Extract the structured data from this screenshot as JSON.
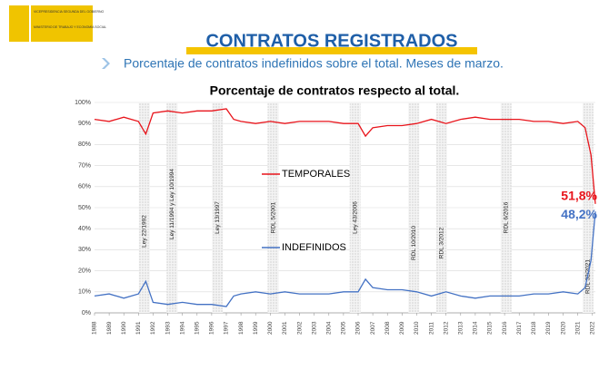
{
  "header": {
    "ministry": [
      "VICEPRESIDENCIA SEGUNDA DEL GOBIERNO",
      "MINISTERIO DE TRABAJO Y ECONOMÍA SOCIAL"
    ],
    "title": "CONTRATOS REGISTRADOS",
    "subtitle": "Porcentaje de contratos indefinidos sobre el total. Meses de marzo."
  },
  "chart_data": {
    "type": "line",
    "title": "Porcentaje de contratos respecto al total.",
    "x": [
      1988,
      1989,
      1990,
      1991,
      1991.5,
      1992,
      1993,
      1994,
      1995,
      1996,
      1997,
      1997.5,
      1998,
      1999,
      2000,
      2001,
      2002,
      2003,
      2004,
      2005,
      2006,
      2006.5,
      2007,
      2008,
      2009,
      2010,
      2011,
      2012,
      2013,
      2014,
      2015,
      2016,
      2017,
      2018,
      2019,
      2020,
      2021,
      2021.5,
      2021.9,
      2022.2
    ],
    "series": [
      {
        "name": "TEMPORALES",
        "color": "#e8141b",
        "values": [
          92,
          91,
          93,
          91,
          85,
          95,
          96,
          95,
          96,
          96,
          97,
          92,
          91,
          90,
          91,
          90,
          91,
          91,
          91,
          90,
          90,
          84,
          88,
          89,
          89,
          90,
          92,
          90,
          92,
          93,
          92,
          92,
          92,
          91,
          91,
          90,
          91,
          88,
          75,
          51.8
        ],
        "value_labels": [
          null,
          null,
          null,
          null,
          null,
          null,
          null,
          null,
          null,
          null,
          null,
          null,
          null,
          null,
          null,
          null,
          null,
          null,
          null,
          null,
          null,
          null,
          null,
          null,
          null,
          null,
          null,
          null,
          null,
          null,
          null,
          null,
          null,
          null,
          null,
          null,
          null,
          null,
          null,
          "51,8%"
        ]
      },
      {
        "name": "INDEFINIDOS",
        "color": "#4472c4",
        "values": [
          8,
          9,
          7,
          9,
          15,
          5,
          4,
          5,
          4,
          4,
          3,
          8,
          9,
          10,
          9,
          10,
          9,
          9,
          9,
          10,
          10,
          16,
          12,
          11,
          11,
          10,
          8,
          10,
          8,
          7,
          8,
          8,
          8,
          9,
          9,
          10,
          9,
          12,
          25,
          48.2
        ],
        "value_labels": [
          null,
          null,
          null,
          null,
          null,
          null,
          null,
          null,
          null,
          null,
          null,
          null,
          null,
          null,
          null,
          null,
          null,
          null,
          null,
          null,
          null,
          null,
          null,
          null,
          null,
          null,
          null,
          null,
          null,
          null,
          null,
          null,
          null,
          null,
          null,
          null,
          null,
          null,
          null,
          "48,2%"
        ]
      }
    ],
    "xlim": [
      1988,
      2022.2
    ],
    "xticks": [
      1988,
      1989,
      1990,
      1991,
      1992,
      1993,
      1994,
      1995,
      1996,
      1997,
      1998,
      1999,
      2000,
      2001,
      2002,
      2003,
      2004,
      2005,
      2006,
      2007,
      2008,
      2009,
      2010,
      2011,
      2012,
      2013,
      2014,
      2015,
      2016,
      2017,
      2018,
      2019,
      2020,
      2021,
      2022
    ],
    "ylim": [
      0,
      100
    ],
    "yticks": [
      {
        "value": 0,
        "label": "0%"
      },
      {
        "value": 10,
        "label": "10%"
      },
      {
        "value": 20,
        "label": "20%"
      },
      {
        "value": 30,
        "label": "30%"
      },
      {
        "value": 40,
        "label": "40%"
      },
      {
        "value": 50,
        "label": "50%"
      },
      {
        "value": 60,
        "label": "60%"
      },
      {
        "value": 70,
        "label": "70%"
      },
      {
        "value": 80,
        "label": "80%"
      },
      {
        "value": 90,
        "label": "90%"
      },
      {
        "value": 100,
        "label": "100%"
      }
    ],
    "grid": true,
    "annotations": [
      {
        "text": "Ley 22/1992",
        "x": 1991.4
      },
      {
        "text": "Ley 11/1994 y Ley 10/1994",
        "x": 1993.3
      },
      {
        "text": "Ley 13/1997",
        "x": 1996.4
      },
      {
        "text": "RDL 5/2001",
        "x": 2000.2
      },
      {
        "text": "Ley 43/2006",
        "x": 2005.8
      },
      {
        "text": "RDL 10/2010",
        "x": 2009.8
      },
      {
        "text": "RDL 3/2012",
        "x": 2011.7
      },
      {
        "text": "RDL 6/2016",
        "x": 2016.1
      },
      {
        "text": "RDL 32/2021",
        "x": 2021.7
      }
    ]
  }
}
